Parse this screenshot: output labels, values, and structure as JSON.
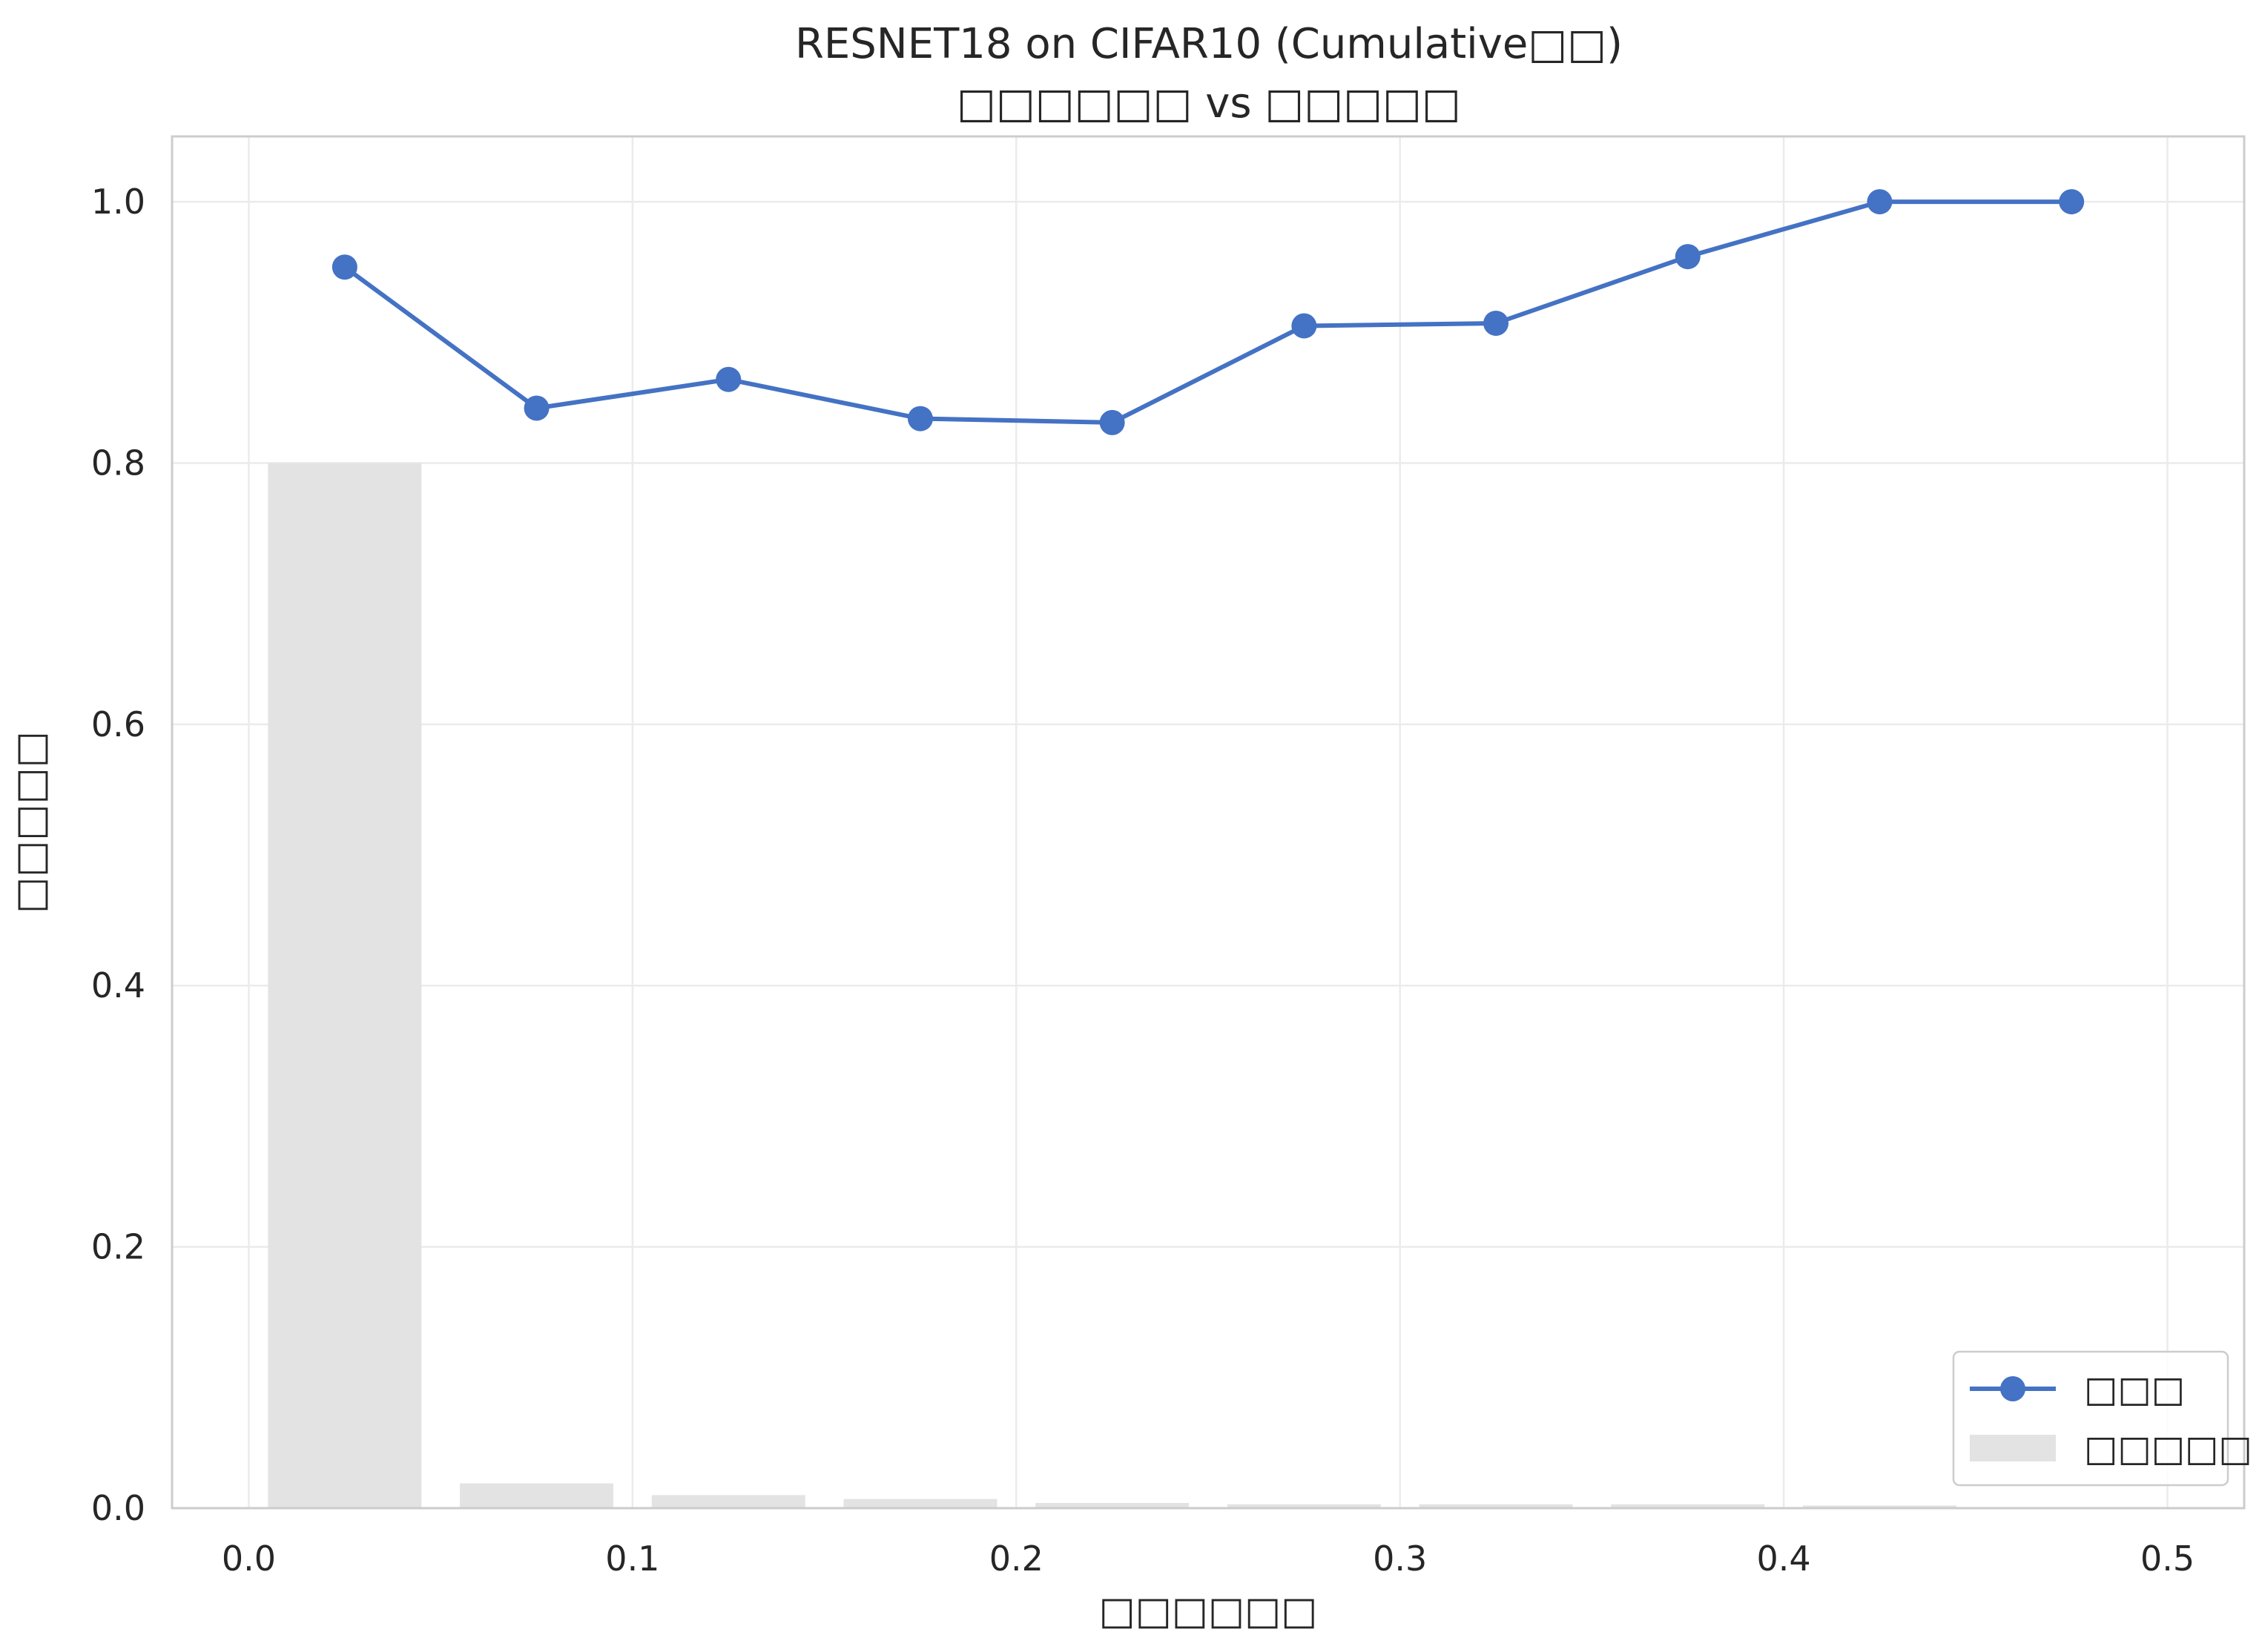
{
  "chart_data": {
    "type": "bar+line",
    "title_line1": "RESNET18 on CIFAR10 (Cumulative□□)",
    "title_line2": "□□□□□□ vs □□□□□",
    "xlabel": "□□□□□□",
    "ylabel": "□□□□□",
    "xlim": [
      -0.02,
      0.52
    ],
    "ylim": [
      0.0,
      1.05
    ],
    "x_ticks": [
      0.0,
      0.1,
      0.2,
      0.3,
      0.4,
      0.5
    ],
    "x_tick_labels": [
      "0.0",
      "0.1",
      "0.2",
      "0.3",
      "0.4",
      "0.5"
    ],
    "y_ticks": [
      0.0,
      0.2,
      0.4,
      0.6,
      0.8,
      1.0
    ],
    "y_tick_labels": [
      "0.0",
      "0.2",
      "0.4",
      "0.6",
      "0.8",
      "1.0"
    ],
    "grid": true,
    "legend_position": "lower-right",
    "bar_width": 0.04,
    "series": [
      {
        "name": "□□□",
        "kind": "line",
        "color": "#4472c4",
        "x": [
          0.025,
          0.075,
          0.125,
          0.175,
          0.225,
          0.275,
          0.325,
          0.375,
          0.425,
          0.475
        ],
        "values": [
          0.95,
          0.842,
          0.864,
          0.834,
          0.831,
          0.905,
          0.907,
          0.958,
          1.0,
          1.0
        ]
      },
      {
        "name": "□□□□□",
        "kind": "bar",
        "color": "#e3e3e3",
        "x": [
          0.025,
          0.075,
          0.125,
          0.175,
          0.225,
          0.275,
          0.325,
          0.375,
          0.425
        ],
        "values": [
          0.8,
          0.019,
          0.01,
          0.007,
          0.004,
          0.003,
          0.003,
          0.003,
          0.002
        ]
      }
    ]
  }
}
